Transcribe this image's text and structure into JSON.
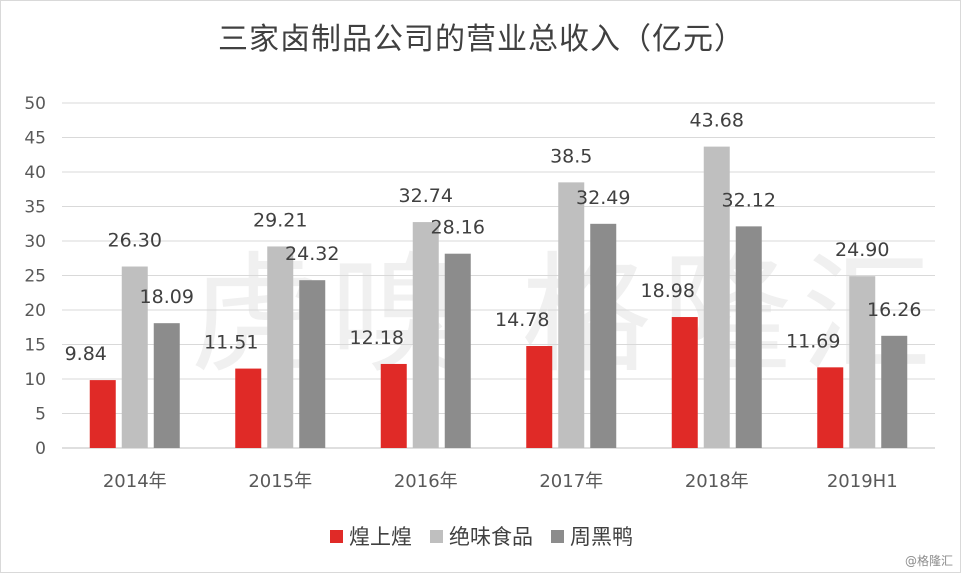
{
  "title": "三家卤制品公司的营业总收入（亿元）",
  "credit": "@格隆汇",
  "watermark": "格隆汇",
  "chart_data": {
    "type": "bar",
    "title": "三家卤制品公司的营业总收入（亿元）",
    "categories": [
      "2014年",
      "2015年",
      "2016年",
      "2017年",
      "2018年",
      "2019H1"
    ],
    "series": [
      {
        "name": "煌上煌",
        "values": [
          9.84,
          11.51,
          12.18,
          14.78,
          18.98,
          11.69
        ],
        "labels": [
          "9.84",
          "11.51",
          "12.18",
          "14.78",
          "18.98",
          "11.69"
        ],
        "color": "#e02a27"
      },
      {
        "name": "绝味食品",
        "values": [
          26.3,
          29.21,
          32.74,
          38.5,
          43.68,
          24.9
        ],
        "labels": [
          "26.30",
          "29.21",
          "32.74",
          "38.5",
          "43.68",
          "24.90"
        ],
        "color": "#bfbfbf"
      },
      {
        "name": "周黑鸭",
        "values": [
          18.09,
          24.32,
          28.16,
          32.49,
          32.12,
          16.26
        ],
        "labels": [
          "18.09",
          "24.32",
          "28.16",
          "32.49",
          "32.12",
          "16.26"
        ],
        "color": "#8c8c8c"
      }
    ],
    "yticks": [
      "0",
      "5",
      "10",
      "15",
      "20",
      "25",
      "30",
      "35",
      "40",
      "45",
      "50"
    ],
    "ylim": [
      0,
      50
    ],
    "grid": true,
    "legend": "bottom"
  }
}
